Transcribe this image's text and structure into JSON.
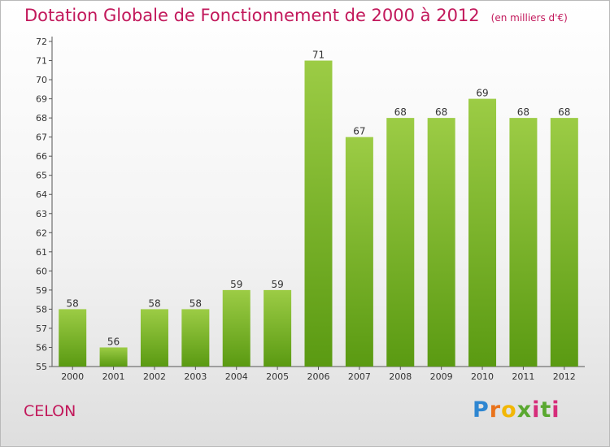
{
  "header": {
    "title": "Dotation Globale de Fonctionnement de 2000 à 2012",
    "unit": "(en milliers d'€)"
  },
  "footer": {
    "commune": "CELON",
    "logo": "Proxiti"
  },
  "colors": {
    "bar_top": "#9ccc45",
    "bar_bottom": "#5a9a12",
    "title": "#c2185b",
    "axis": "#555555"
  },
  "chart_data": {
    "type": "bar",
    "categories": [
      "2000",
      "2001",
      "2002",
      "2003",
      "2004",
      "2005",
      "2006",
      "2007",
      "2008",
      "2009",
      "2010",
      "2011",
      "2012"
    ],
    "values": [
      58,
      56,
      58,
      58,
      59,
      59,
      71,
      67,
      68,
      68,
      69,
      68,
      68
    ],
    "ylim": [
      55,
      72
    ],
    "yticks": [
      55,
      56,
      57,
      58,
      59,
      60,
      61,
      62,
      63,
      64,
      65,
      66,
      67,
      68,
      69,
      70,
      71,
      72
    ],
    "grid": false,
    "legend": "none",
    "data_labels": true
  }
}
